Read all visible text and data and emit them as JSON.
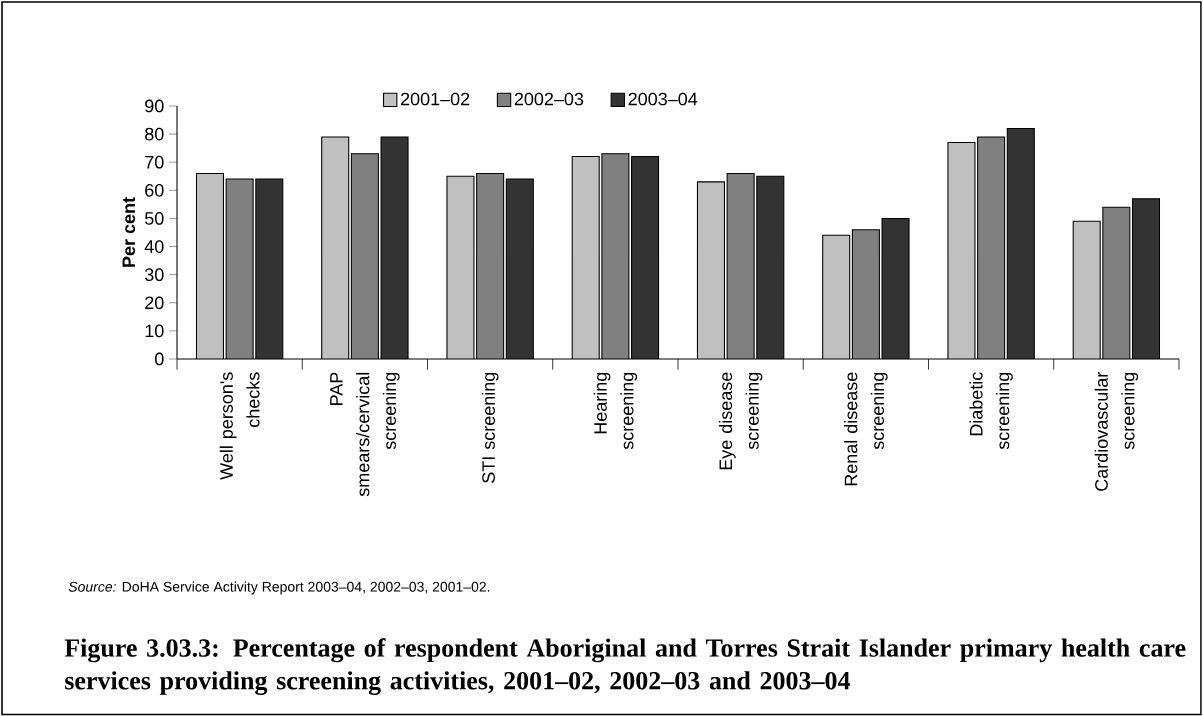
{
  "chart_data": {
    "type": "bar",
    "title": "Figure 3.03.3: Percentage of respondent Aboriginal and Torres Strait Islander primary health care services providing screening activities, 2001–02, 2002–03 and 2003–04",
    "ylabel": "Per cent",
    "categories": [
      "Well person's checks",
      "PAP smears/cervical screening",
      "STI screening",
      "Hearing screening",
      "Eye disease screening",
      "Renal disease screening",
      "Diabetic screening",
      "Cardiovascular screening"
    ],
    "series": [
      {
        "name": "2001–02",
        "color": "#c0c0c0",
        "values": [
          66,
          79,
          65,
          72,
          63,
          44,
          77,
          49
        ]
      },
      {
        "name": "2002–03",
        "color": "#808080",
        "values": [
          64,
          73,
          66,
          73,
          66,
          46,
          79,
          54
        ]
      },
      {
        "name": "2003–04",
        "color": "#333333",
        "values": [
          64,
          79,
          64,
          72,
          65,
          50,
          82,
          57
        ]
      }
    ],
    "ylim": [
      0,
      90
    ],
    "yticks": [
      0,
      10,
      20,
      30,
      40,
      50,
      60,
      70,
      80,
      90
    ],
    "legend": "top",
    "annotations": [
      "*Source:* DoHA Service Activity Report 2003–04, 2002–03, 2001–02."
    ]
  }
}
